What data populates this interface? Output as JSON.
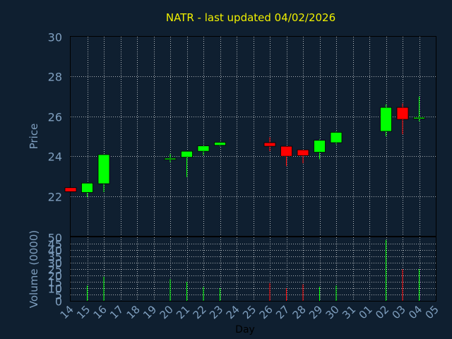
{
  "chart_data": {
    "type": "candlestick",
    "title": "NATR - last updated 04/02/2026",
    "ylabel": "Price",
    "volume_label": "Volume (0000)",
    "xlabel": "Day",
    "ylim": [
      20,
      30
    ],
    "yticks": [
      "22",
      "24",
      "26",
      "28",
      "30"
    ],
    "volume_ylim": [
      0,
      50
    ],
    "volume_yticks": [
      "0",
      "5",
      "10",
      "15",
      "20",
      "25",
      "30",
      "35",
      "40",
      "45",
      "50"
    ],
    "x_ticks": [
      "14",
      "15",
      "16",
      "17",
      "18",
      "19",
      "20",
      "21",
      "22",
      "23",
      "24",
      "25",
      "26",
      "27",
      "28",
      "29",
      "30",
      "31",
      "01",
      "02",
      "03",
      "04",
      "05"
    ],
    "grid": true,
    "colors": {
      "background": "#0f1f30",
      "up": "#00ff00",
      "down": "#ff0000",
      "frame": "#000000",
      "title": "#f0f000",
      "tick": "#7f9fbf",
      "grid": "#ffffff"
    },
    "candles": [
      {
        "day": "14",
        "open": 22.42,
        "high": 22.42,
        "low": 22.22,
        "close": 22.22
      },
      {
        "day": "15",
        "open": 22.18,
        "high": 22.65,
        "low": 21.95,
        "close": 22.65
      },
      {
        "day": "16",
        "open": 22.62,
        "high": 24.1,
        "low": 22.2,
        "close": 24.08
      },
      {
        "day": "20",
        "open": 23.83,
        "high": 24.12,
        "low": 23.7,
        "close": 23.9
      },
      {
        "day": "21",
        "open": 23.95,
        "high": 24.25,
        "low": 22.95,
        "close": 24.25
      },
      {
        "day": "22",
        "open": 24.25,
        "high": 24.55,
        "low": 24.05,
        "close": 24.52
      },
      {
        "day": "23",
        "open": 24.55,
        "high": 24.72,
        "low": 24.5,
        "close": 24.7
      },
      {
        "day": "26",
        "open": 24.68,
        "high": 24.95,
        "low": 24.25,
        "close": 24.5
      },
      {
        "day": "27",
        "open": 24.5,
        "high": 24.52,
        "low": 23.5,
        "close": 24.0
      },
      {
        "day": "28",
        "open": 24.32,
        "high": 24.32,
        "low": 23.65,
        "close": 24.03
      },
      {
        "day": "29",
        "open": 24.2,
        "high": 24.85,
        "low": 23.85,
        "close": 24.8
      },
      {
        "day": "30",
        "open": 24.68,
        "high": 25.25,
        "low": 24.6,
        "close": 25.2
      },
      {
        "day": "02",
        "open": 25.25,
        "high": 26.6,
        "low": 25.0,
        "close": 26.45
      },
      {
        "day": "03",
        "open": 26.45,
        "high": 26.65,
        "low": 25.1,
        "close": 25.85
      },
      {
        "day": "04",
        "open": 25.88,
        "high": 27.0,
        "low": 25.75,
        "close": 25.95
      }
    ],
    "volume": [
      {
        "day": "15",
        "value": 12,
        "up": true
      },
      {
        "day": "16",
        "value": 19,
        "up": true
      },
      {
        "day": "20",
        "value": 17,
        "up": true
      },
      {
        "day": "21",
        "value": 15,
        "up": true
      },
      {
        "day": "22",
        "value": 11,
        "up": true
      },
      {
        "day": "23",
        "value": 10,
        "up": true
      },
      {
        "day": "26",
        "value": 14,
        "up": false
      },
      {
        "day": "27",
        "value": 10,
        "up": false
      },
      {
        "day": "28",
        "value": 13,
        "up": false
      },
      {
        "day": "29",
        "value": 11,
        "up": true
      },
      {
        "day": "30",
        "value": 12,
        "up": true
      },
      {
        "day": "02",
        "value": 48,
        "up": true
      },
      {
        "day": "03",
        "value": 25,
        "up": false
      },
      {
        "day": "04",
        "value": 25,
        "up": true
      }
    ]
  }
}
